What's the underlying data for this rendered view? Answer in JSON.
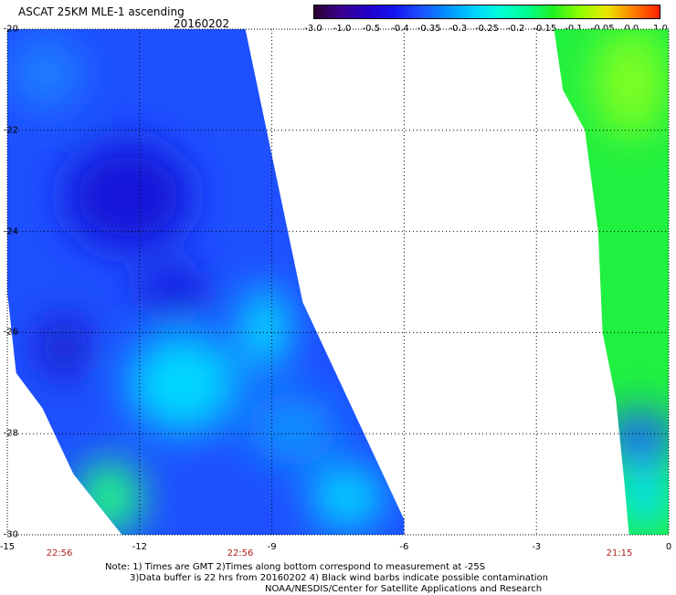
{
  "header": {
    "title": "ASCAT 25KM MLE-1 ascending",
    "date": "20160202"
  },
  "colorbar": {
    "ticks": [
      "-3.0",
      "-1.0",
      "-0.5",
      "-0.4",
      "-0.35",
      "-0.3",
      "-0.25",
      "-0.2",
      "-0.15",
      "-0.1",
      "-0.05",
      "0.0",
      "1.0"
    ],
    "colors": [
      "#2a0030",
      "#3a0090",
      "#2400c8",
      "#1414f0",
      "#1e50ff",
      "#0090ff",
      "#00d0ff",
      "#00ffd8",
      "#00ff90",
      "#20f020",
      "#90ff00",
      "#e8e800",
      "#ff8000",
      "#ff2000"
    ]
  },
  "axes": {
    "x_ticks": [
      "-15",
      "-12",
      "-9",
      "-6",
      "-3",
      "0"
    ],
    "y_ticks": [
      "-20",
      "-22",
      "-24",
      "-26",
      "-28",
      "-30"
    ],
    "times": [
      "22:56",
      "22:56",
      "21:15"
    ]
  },
  "map_data": {
    "lon_range": [
      -15,
      0
    ],
    "lat_range": [
      -30,
      -20
    ],
    "grid_spacing_lon": 3,
    "grid_spacing_lat": 2,
    "swaths": [
      {
        "name": "west",
        "polygon_lonlat": [
          [
            -15,
            -20
          ],
          [
            -9.6,
            -20
          ],
          [
            -8.3,
            -25.4
          ],
          [
            -6.0,
            -29.7
          ],
          [
            -6.0,
            -30
          ],
          [
            -12.4,
            -30
          ],
          [
            -13.5,
            -28.8
          ],
          [
            -14.2,
            -27.5
          ],
          [
            -14.8,
            -26.8
          ],
          [
            -15,
            -25.2
          ]
        ]
      },
      {
        "name": "east",
        "polygon_lonlat": [
          [
            -2.6,
            -20
          ],
          [
            0,
            -20
          ],
          [
            0,
            -30
          ],
          [
            -0.9,
            -30
          ],
          [
            -1.0,
            -29.0
          ],
          [
            -1.2,
            -27.3
          ],
          [
            -1.5,
            -26.0
          ],
          [
            -1.6,
            -24.0
          ],
          [
            -1.9,
            -22.0
          ],
          [
            -2.4,
            -21.2
          ]
        ]
      }
    ],
    "features": [
      {
        "lon": -12.0,
        "lat": -23.0,
        "value": "-0.5"
      },
      {
        "lon": -11.5,
        "lat": -27.5,
        "value": "-0.3"
      },
      {
        "lon": -9.0,
        "lat": -26.0,
        "value": "-0.25"
      },
      {
        "lon": -13.8,
        "lat": -29.5,
        "value": "-0.2"
      },
      {
        "lon": -1.0,
        "lat": -22.0,
        "value": "-0.1"
      },
      {
        "lon": -0.8,
        "lat": -28.5,
        "value": "-0.35"
      }
    ]
  },
  "notes": {
    "line1": "Note: 1) Times are GMT 2)Times along bottom correspond to measurement at -25S",
    "line2": "3)Data buffer is 22 hrs from 20160202 4) Black wind barbs indicate possible contamination",
    "line3": "NOAA/NESDIS/Center for Satellite Applications and Research"
  }
}
